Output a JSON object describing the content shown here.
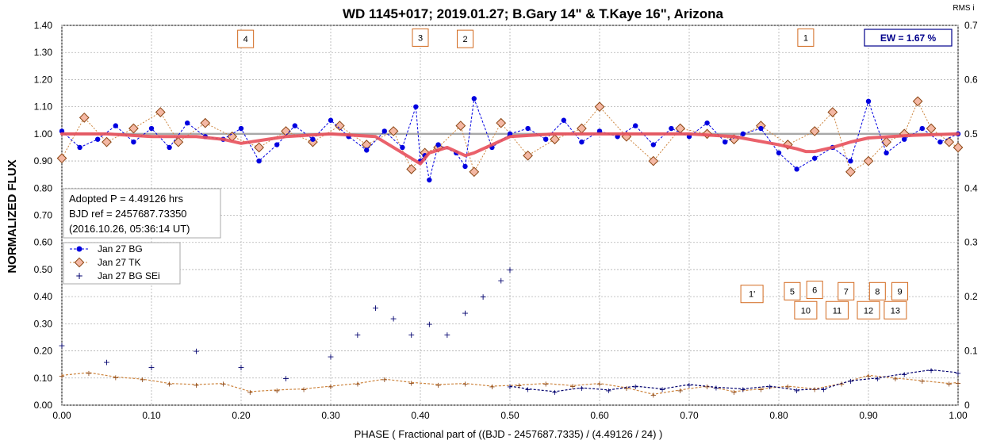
{
  "chart_data": {
    "type": "scatter",
    "title": "WD 1145+017; 2019.01.27; B.Gary 14\" & T.Kaye 16\", Arizona",
    "xlabel": "PHASE ( Fractional part of ((BJD - 2457687.7335) / (4.49126 / 24) )",
    "ylabel": "NORMALIZED FLUX",
    "y2label": "RMS i",
    "xlim": [
      0,
      1
    ],
    "ylim": [
      0,
      1.4
    ],
    "y2lim": [
      0,
      0.7
    ],
    "grid": true,
    "legend_position": "left",
    "x_ticks": [
      "0.00",
      "0.10",
      "0.20",
      "0.30",
      "0.40",
      "0.50",
      "0.60",
      "0.70",
      "0.80",
      "0.90",
      "1.00"
    ],
    "y_ticks": [
      "0.00",
      "0.10",
      "0.20",
      "0.30",
      "0.40",
      "0.50",
      "0.60",
      "0.70",
      "0.80",
      "0.90",
      "1.00",
      "1.10",
      "1.20",
      "1.30",
      "1.40"
    ],
    "y2_ticks": [
      "0",
      "0.1",
      "0.2",
      "0.3",
      "0.4",
      "0.5",
      "0.6",
      "0.7"
    ],
    "info_lines": [
      "Adopted P = 4.49126 hrs",
      "BJD ref = 2457687.73350",
      "(2016.10.26, 05:36:14 UT)"
    ],
    "ew_label": "EW =  1.67 %",
    "colors": {
      "bg": "#0000e0",
      "tk_edge": "#8b4513",
      "tk_fill": "#f4b8a4",
      "sei": "#00006e",
      "model": "#e8505b",
      "tk_line": "#cd853f",
      "reference": "#a9a9a9",
      "box": "#d2691e"
    },
    "series": [
      {
        "name": "Jan 27 BG",
        "style": "blue-dot-dashed",
        "x": [
          0.0,
          0.02,
          0.04,
          0.06,
          0.08,
          0.1,
          0.12,
          0.14,
          0.16,
          0.18,
          0.2,
          0.22,
          0.24,
          0.26,
          0.28,
          0.3,
          0.32,
          0.34,
          0.36,
          0.38,
          0.395,
          0.4,
          0.405,
          0.41,
          0.42,
          0.44,
          0.45,
          0.46,
          0.48,
          0.5,
          0.52,
          0.54,
          0.56,
          0.58,
          0.6,
          0.62,
          0.64,
          0.66,
          0.68,
          0.7,
          0.72,
          0.74,
          0.76,
          0.78,
          0.8,
          0.82,
          0.84,
          0.86,
          0.88,
          0.9,
          0.92,
          0.94,
          0.96,
          0.98,
          1.0
        ],
        "y": [
          1.01,
          0.95,
          0.98,
          1.03,
          0.97,
          1.02,
          0.95,
          1.04,
          0.99,
          0.98,
          1.02,
          0.9,
          0.96,
          1.03,
          0.98,
          1.05,
          0.99,
          0.94,
          1.01,
          0.95,
          1.1,
          0.9,
          0.92,
          0.83,
          0.96,
          0.93,
          0.88,
          1.13,
          0.95,
          1.0,
          1.02,
          0.98,
          1.05,
          0.97,
          1.01,
          0.99,
          1.03,
          0.96,
          1.02,
          0.99,
          1.04,
          0.97,
          1.0,
          1.02,
          0.93,
          0.87,
          0.91,
          0.95,
          0.9,
          1.12,
          0.93,
          0.98,
          1.02,
          0.97,
          1.0
        ]
      },
      {
        "name": "Jan 27 TK",
        "style": "brown-diamond-dotted",
        "x": [
          0.0,
          0.025,
          0.05,
          0.08,
          0.11,
          0.13,
          0.16,
          0.19,
          0.22,
          0.25,
          0.28,
          0.31,
          0.34,
          0.37,
          0.39,
          0.405,
          0.42,
          0.445,
          0.46,
          0.49,
          0.52,
          0.55,
          0.58,
          0.6,
          0.63,
          0.66,
          0.69,
          0.72,
          0.75,
          0.78,
          0.81,
          0.84,
          0.86,
          0.88,
          0.9,
          0.92,
          0.94,
          0.955,
          0.97,
          0.99,
          1.0
        ],
        "y": [
          0.91,
          1.06,
          0.97,
          1.02,
          1.08,
          0.97,
          1.04,
          0.99,
          0.95,
          1.01,
          0.97,
          1.03,
          0.96,
          1.01,
          0.87,
          0.93,
          0.95,
          1.03,
          0.86,
          1.04,
          0.92,
          0.98,
          1.02,
          1.1,
          0.99,
          0.9,
          1.02,
          1.0,
          0.98,
          1.03,
          0.96,
          1.01,
          1.08,
          0.86,
          0.9,
          0.97,
          1.0,
          1.12,
          1.02,
          0.97,
          0.95
        ]
      },
      {
        "name": "Jan 27 BG SEi",
        "style": "navy-plus",
        "x": [
          0.0,
          0.05,
          0.1,
          0.15,
          0.2,
          0.25,
          0.3,
          0.33,
          0.35,
          0.37,
          0.39,
          0.41,
          0.43,
          0.45,
          0.47,
          0.49,
          0.5
        ],
        "y": [
          0.11,
          0.08,
          0.07,
          0.1,
          0.07,
          0.05,
          0.09,
          0.13,
          0.18,
          0.16,
          0.13,
          0.15,
          0.13,
          0.17,
          0.2,
          0.23,
          0.25
        ],
        "axis": "y2"
      },
      {
        "name": "",
        "style": "rms-tk",
        "x": [
          0.0,
          0.03,
          0.06,
          0.09,
          0.12,
          0.15,
          0.18,
          0.21,
          0.24,
          0.27,
          0.3,
          0.33,
          0.36,
          0.39,
          0.42,
          0.45,
          0.48,
          0.51,
          0.54,
          0.57,
          0.6,
          0.63,
          0.66,
          0.69,
          0.72,
          0.75,
          0.78,
          0.81,
          0.84,
          0.87,
          0.9,
          0.93,
          0.96,
          0.99,
          1.0
        ],
        "y": [
          0.055,
          0.06,
          0.052,
          0.048,
          0.04,
          0.038,
          0.04,
          0.025,
          0.028,
          0.03,
          0.035,
          0.04,
          0.048,
          0.042,
          0.038,
          0.04,
          0.035,
          0.037,
          0.04,
          0.036,
          0.04,
          0.032,
          0.02,
          0.028,
          0.035,
          0.025,
          0.03,
          0.035,
          0.03,
          0.04,
          0.055,
          0.05,
          0.045,
          0.04,
          0.042
        ],
        "axis": "y2"
      },
      {
        "name": "",
        "style": "rms-bg",
        "x": [
          0.5,
          0.52,
          0.55,
          0.58,
          0.61,
          0.64,
          0.67,
          0.7,
          0.73,
          0.76,
          0.79,
          0.82,
          0.85,
          0.88,
          0.91,
          0.94,
          0.97,
          1.0
        ],
        "y": [
          0.035,
          0.03,
          0.025,
          0.032,
          0.028,
          0.035,
          0.03,
          0.038,
          0.033,
          0.03,
          0.035,
          0.028,
          0.03,
          0.045,
          0.05,
          0.058,
          0.065,
          0.06
        ],
        "axis": "y2"
      }
    ],
    "model": {
      "x": [
        0.0,
        0.05,
        0.1,
        0.15,
        0.18,
        0.2,
        0.22,
        0.25,
        0.3,
        0.35,
        0.37,
        0.39,
        0.4,
        0.41,
        0.43,
        0.45,
        0.46,
        0.48,
        0.5,
        0.55,
        0.6,
        0.65,
        0.7,
        0.75,
        0.8,
        0.82,
        0.83,
        0.84,
        0.86,
        0.88,
        0.9,
        0.95,
        1.0
      ],
      "y": [
        1.0,
        1.0,
        0.99,
        0.99,
        0.98,
        0.965,
        0.975,
        0.99,
        1.0,
        0.99,
        0.95,
        0.91,
        0.89,
        0.93,
        0.95,
        0.92,
        0.93,
        0.96,
        0.99,
        1.0,
        1.0,
        1.0,
        1.0,
        0.99,
        0.96,
        0.945,
        0.935,
        0.935,
        0.95,
        0.97,
        0.985,
        0.995,
        1.0
      ]
    },
    "reference_y": 1.0,
    "markers": [
      {
        "label": "4",
        "x": 0.205,
        "y": 1.35
      },
      {
        "label": "3",
        "x": 0.4,
        "y": 1.355
      },
      {
        "label": "2",
        "x": 0.45,
        "y": 1.35
      },
      {
        "label": "1",
        "x": 0.83,
        "y": 1.355
      },
      {
        "label": "1'",
        "x": 0.77,
        "y": 0.41
      },
      {
        "label": "5",
        "x": 0.815,
        "y": 0.42
      },
      {
        "label": "6",
        "x": 0.84,
        "y": 0.425
      },
      {
        "label": "7",
        "x": 0.875,
        "y": 0.42
      },
      {
        "label": "8",
        "x": 0.91,
        "y": 0.42
      },
      {
        "label": "9",
        "x": 0.935,
        "y": 0.42
      },
      {
        "label": "10",
        "x": 0.83,
        "y": 0.35
      },
      {
        "label": "11",
        "x": 0.865,
        "y": 0.35
      },
      {
        "label": "12",
        "x": 0.9,
        "y": 0.35
      },
      {
        "label": "13",
        "x": 0.93,
        "y": 0.35
      }
    ]
  }
}
